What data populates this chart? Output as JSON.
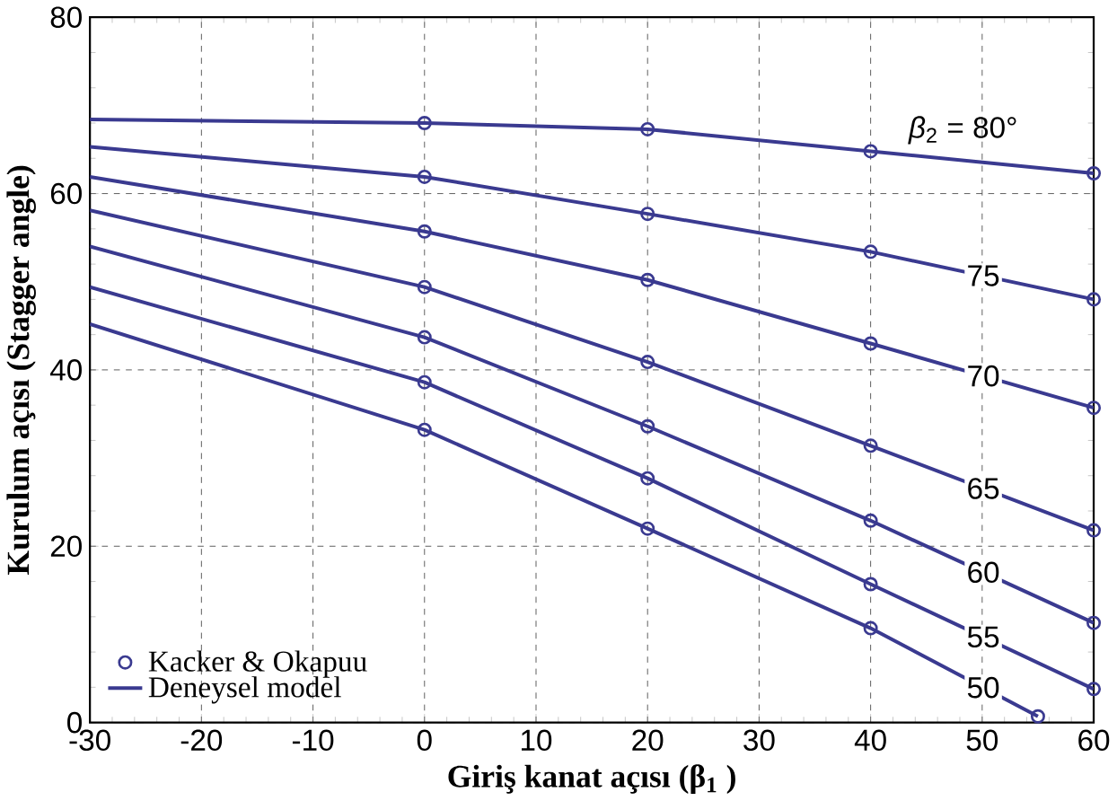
{
  "chart_data": {
    "type": "line",
    "xlabel": "Giriş kanat açısı (β$_{1}$ )",
    "ylabel": "Kurulum açısı (Stagger angle)",
    "xlim": [
      -30,
      60
    ],
    "ylim": [
      0,
      80
    ],
    "xticks": [
      -30,
      -20,
      -10,
      0,
      10,
      20,
      30,
      40,
      50,
      60
    ],
    "yticks": [
      0,
      20,
      40,
      60,
      80
    ],
    "grid": true,
    "legend": "bottom left",
    "series": [
      {
        "name": "Kacker & Okapuu",
        "type": "scatter",
        "marker": "circle",
        "color": "#3a3a90",
        "x": [
          0,
          20,
          40,
          60,
          0,
          20,
          40,
          60,
          0,
          20,
          40,
          60,
          0,
          20,
          40,
          60,
          0,
          20,
          40,
          60,
          0,
          20,
          40,
          60,
          0,
          20,
          40,
          55
        ],
        "values": [
          68,
          67.3,
          64.8,
          62.3,
          61.9,
          57.7,
          53.4,
          48,
          55.7,
          50.2,
          43,
          35.7,
          49.4,
          40.9,
          31.4,
          21.8,
          43.7,
          33.6,
          22.9,
          11.3,
          38.6,
          27.7,
          15.7,
          3.8,
          33.2,
          22,
          10.7,
          0.7
        ]
      },
      {
        "name": "Deneysel model",
        "marker": "none",
        "color": "#3a3a90",
        "x": [
          -30,
          0,
          20,
          40,
          60
        ],
        "values": [
          68.4,
          68,
          67.3,
          64.8,
          62.3
        ]
      },
      {
        "marker": "none",
        "color": "#3a3a90",
        "x": [
          -30,
          0,
          20,
          40,
          60
        ],
        "values": [
          65.3,
          61.9,
          57.7,
          53.4,
          48
        ]
      },
      {
        "marker": "none",
        "color": "#3a3a90",
        "x": [
          -30,
          0,
          20,
          40,
          60
        ],
        "values": [
          61.9,
          55.7,
          50.2,
          43,
          35.7
        ]
      },
      {
        "marker": "none",
        "color": "#3a3a90",
        "x": [
          -30,
          0,
          20,
          40,
          60
        ],
        "values": [
          58.1,
          49.4,
          40.9,
          31.4,
          21.8
        ]
      },
      {
        "marker": "none",
        "color": "#3a3a90",
        "x": [
          -30,
          0,
          20,
          40,
          60
        ],
        "values": [
          54,
          43.7,
          33.6,
          22.9,
          11.3
        ]
      },
      {
        "marker": "none",
        "color": "#3a3a90",
        "x": [
          -30,
          0,
          20,
          40,
          60
        ],
        "values": [
          49.4,
          38.6,
          27.7,
          15.7,
          3.8
        ]
      },
      {
        "marker": "none",
        "color": "#3a3a90",
        "x": [
          -30,
          0,
          20,
          40,
          55
        ],
        "values": [
          45.2,
          33.2,
          22,
          10.7,
          0.7
        ]
      }
    ],
    "annotations": [
      "*β*$_{2}$ = 80°",
      "75",
      "70",
      "65",
      "60",
      "55",
      "50"
    ]
  }
}
